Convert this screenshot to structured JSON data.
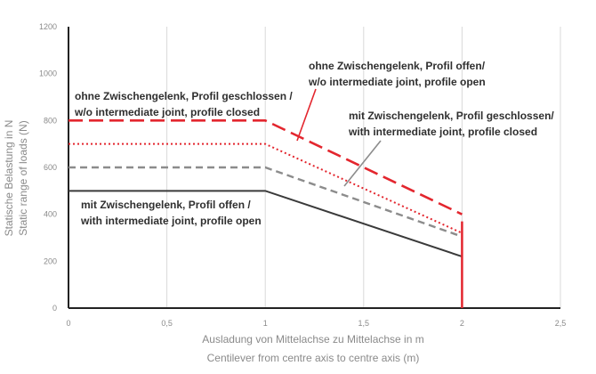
{
  "chart_data": {
    "type": "line",
    "xlabel_lines": [
      "Ausladung von Mittelachse zu Mittelachse in m",
      "Centilever from centre axis to centre axis (m)"
    ],
    "ylabel_lines": [
      "Statische Belastung in N",
      "Static range of loads (N)"
    ],
    "xlim": [
      0,
      2.5
    ],
    "ylim": [
      0,
      1200
    ],
    "x_ticks": [
      0,
      0.5,
      1,
      1.5,
      2,
      2.5
    ],
    "x_tick_labels": [
      "0",
      "0,5",
      "1",
      "1,5",
      "2",
      "2,5"
    ],
    "y_ticks": [
      0,
      200,
      400,
      600,
      800,
      1000,
      1200
    ],
    "y_tick_labels": [
      "0",
      "200",
      "400",
      "600",
      "800",
      "1000",
      "1200"
    ],
    "grid": {
      "vertical": true,
      "horizontal": false
    },
    "series": [
      {
        "x": [
          0,
          1,
          2
        ],
        "y": [
          800,
          800,
          400
        ],
        "color": "#e3262e",
        "style": "long-dash"
      },
      {
        "x": [
          0,
          1,
          2
        ],
        "y": [
          700,
          700,
          320
        ],
        "color": "#e3262e",
        "style": "dotted"
      },
      {
        "x": [
          0,
          1,
          2
        ],
        "y": [
          600,
          600,
          305
        ],
        "color": "#8c8c8c",
        "style": "dash"
      },
      {
        "x": [
          0,
          1,
          2
        ],
        "y": [
          500,
          500,
          220
        ],
        "color": "#3a3a3a",
        "style": "solid"
      }
    ],
    "limit_line": {
      "x": 2,
      "y": [
        0,
        370
      ],
      "color": "#e3262e"
    },
    "annotations": [
      {
        "lines": [
          "ohne Zwischengelenk, Profil offen/",
          "w/o intermediate joint, profile open"
        ],
        "placement": "top-right",
        "points_to_series": 1
      },
      {
        "lines": [
          "ohne Zwischengelenk, Profil geschlossen /",
          "w/o intermediate joint, profile closed"
        ],
        "placement": "top-left",
        "points_to_series": null
      },
      {
        "lines": [
          "mit Zwischengelenk, Profil geschlossen/",
          "with intermediate joint, profile closed"
        ],
        "placement": "right",
        "points_to_series": 2
      },
      {
        "lines": [
          "mit Zwischengelenk, Profil offen /",
          "with intermediate joint, profile open"
        ],
        "placement": "lower-left",
        "points_to_series": null
      }
    ]
  }
}
